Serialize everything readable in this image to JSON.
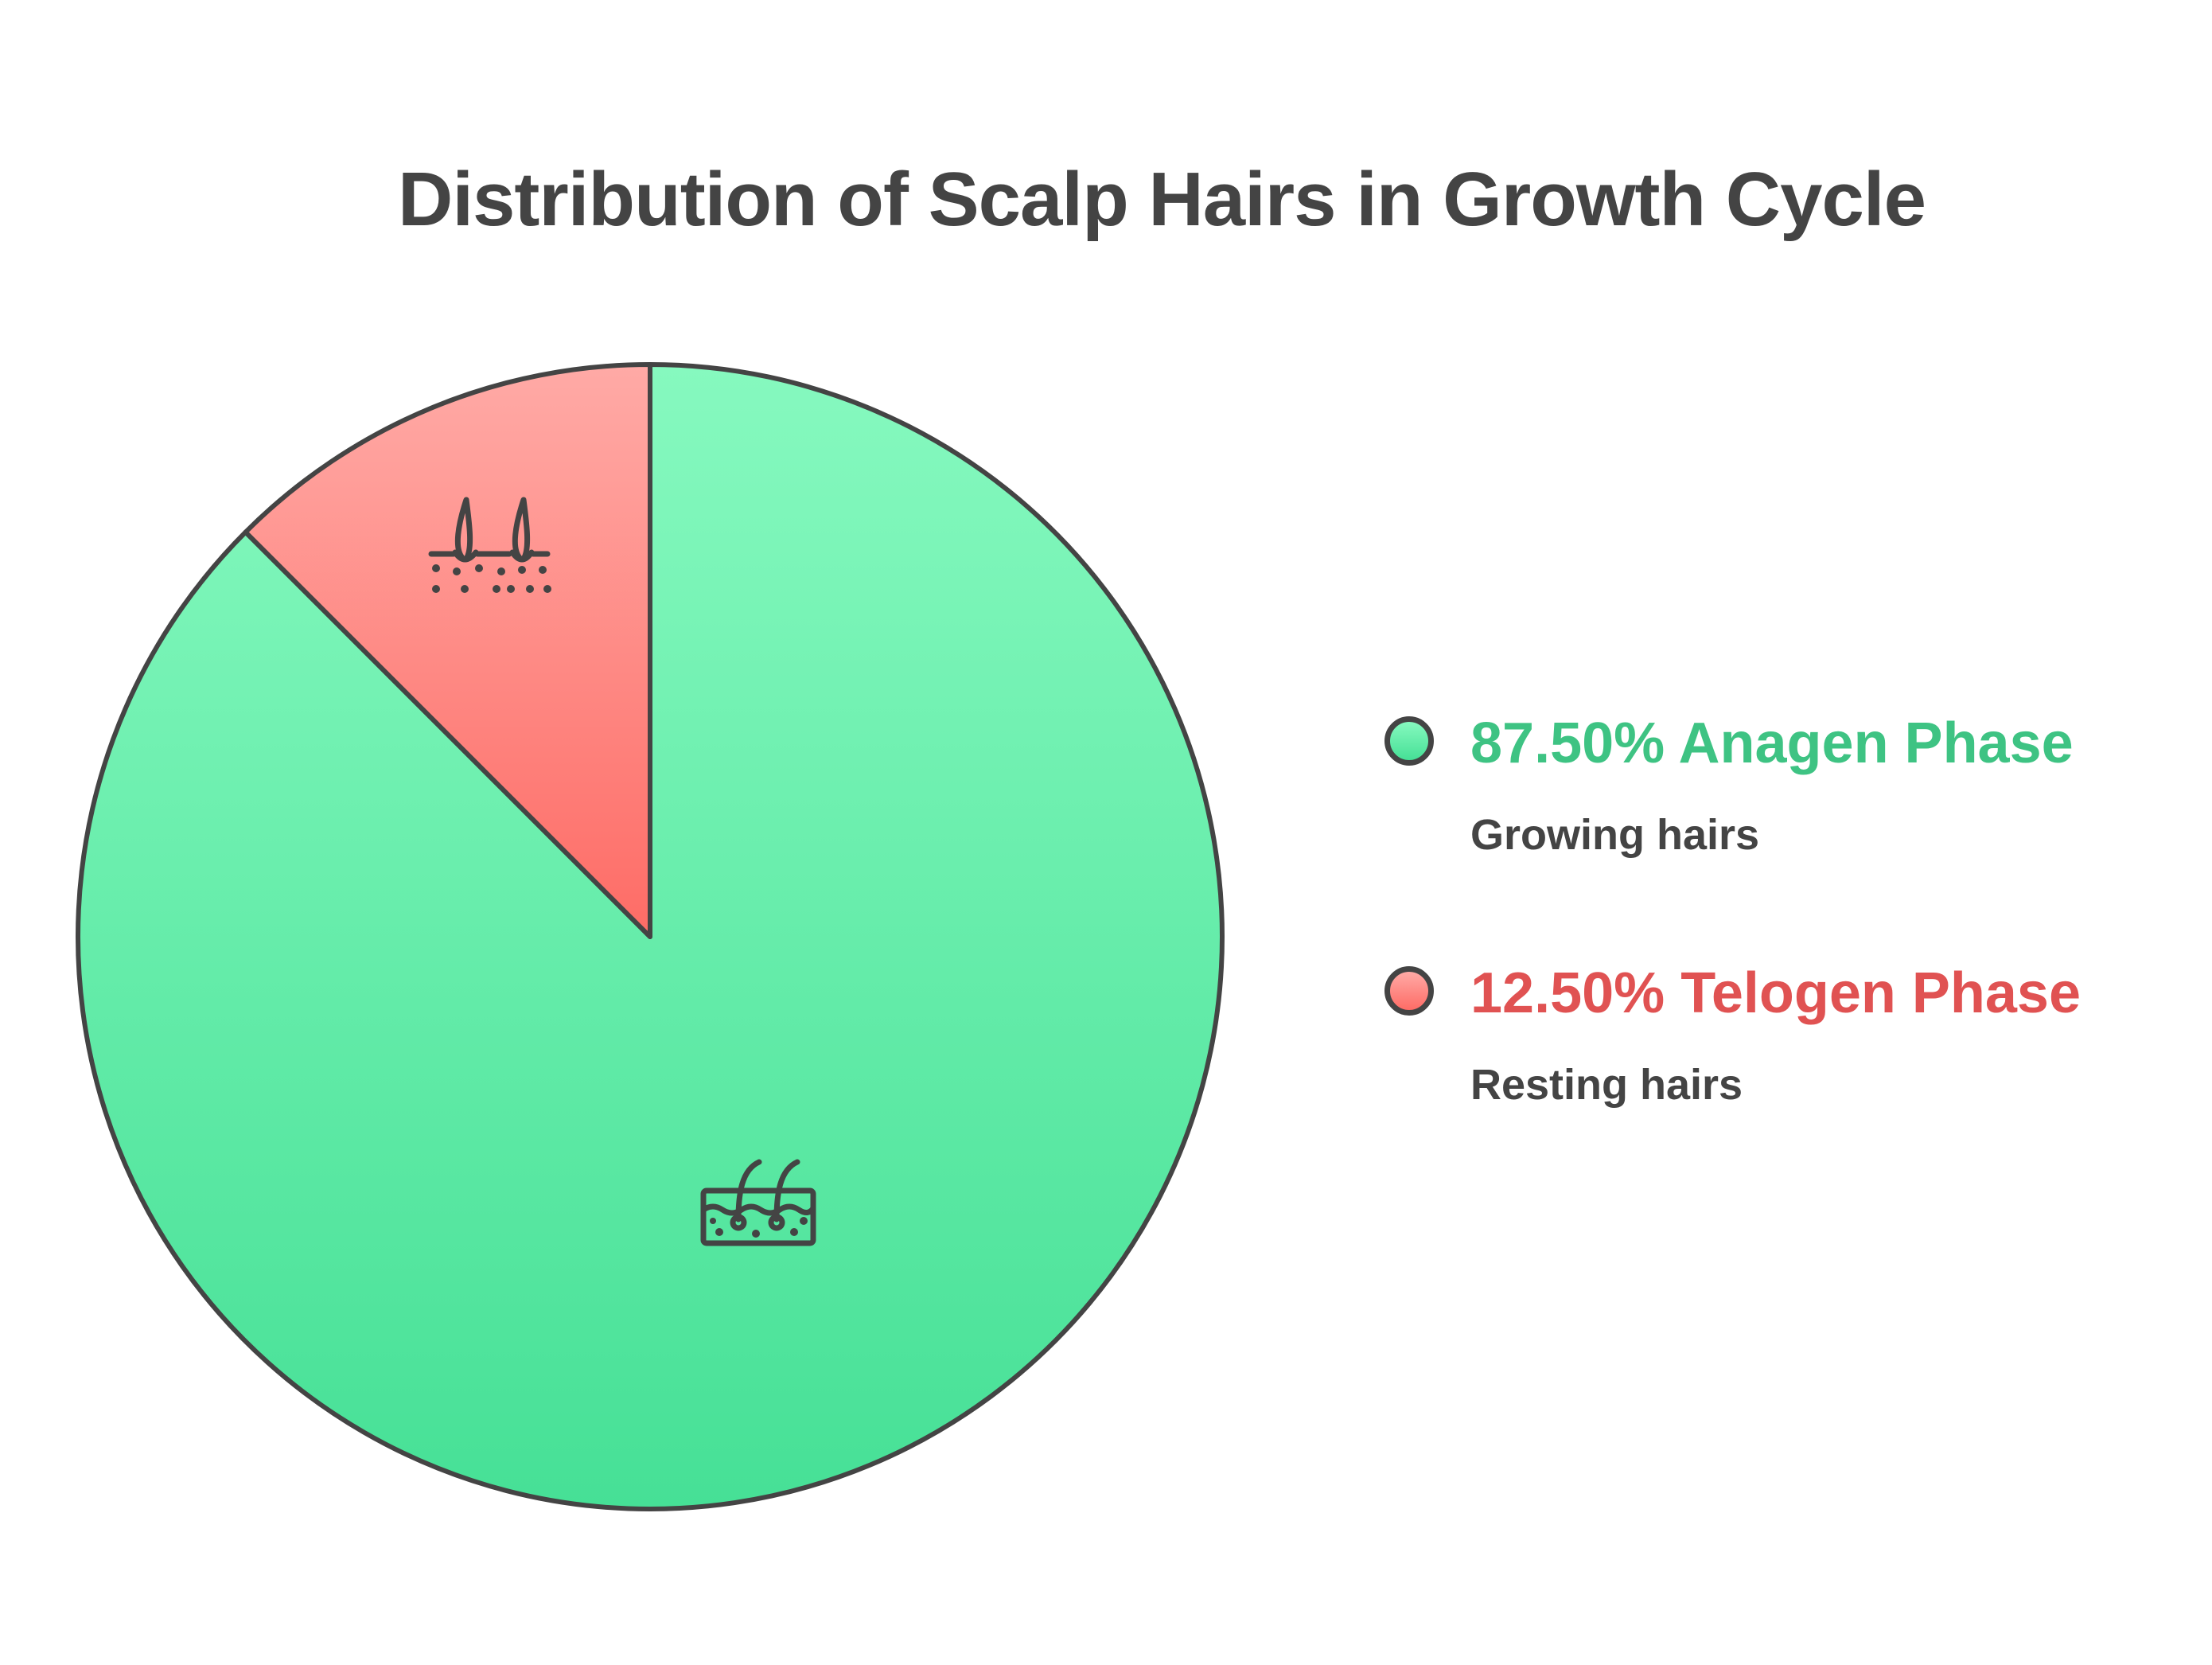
{
  "chart_data": {
    "type": "pie",
    "title": "Distribution of Scalp Hairs in Growth Cycle",
    "slices": [
      {
        "label": "87.50% Anagen Phase",
        "value": 87.5,
        "description": "Growing hairs",
        "color": "#3ec383",
        "fill_top": "#86f9bf",
        "fill_bottom": "#46e096",
        "icon": "growing-hair-follicle-icon"
      },
      {
        "label": "12.50% Telogen Phase",
        "value": 12.5,
        "description": "Resting hairs",
        "color": "#e05252",
        "fill_top": "#ffaaa6",
        "fill_bottom": "#fe6c66",
        "icon": "resting-hair-follicle-icon"
      }
    ],
    "legend_position": "right",
    "outline_color": "#444444"
  }
}
